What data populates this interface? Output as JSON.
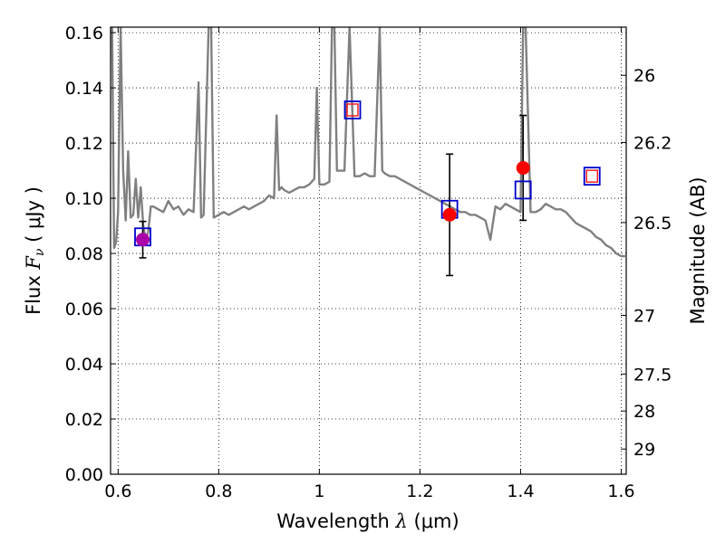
{
  "chart_data": {
    "type": "scatter",
    "xlabel": "Wavelength  λ (μm)",
    "ylabel": "Flux  Fν  ( μJy )",
    "ylabel_parts": {
      "prefix": "Flux ",
      "symbol": "F",
      "subscript": "ν",
      "unit": " ( μJy )"
    },
    "xlabel_parts": {
      "prefix": "Wavelength  ",
      "symbol": "λ",
      "unit": " (μm)"
    },
    "y2label": "Magnitude (AB)",
    "xlim": [
      0.585,
      1.61
    ],
    "ylim": [
      0.0,
      0.162
    ],
    "grid": true,
    "x_ticks": [
      {
        "value": 0.6,
        "label": "0.6"
      },
      {
        "value": 0.8,
        "label": "0.8"
      },
      {
        "value": 1.0,
        "label": "1"
      },
      {
        "value": 1.2,
        "label": "1.2"
      },
      {
        "value": 1.4,
        "label": "1.4"
      },
      {
        "value": 1.6,
        "label": "1.6"
      }
    ],
    "y_ticks": [
      {
        "value": 0.0,
        "label": "0.00"
      },
      {
        "value": 0.02,
        "label": "0.02"
      },
      {
        "value": 0.04,
        "label": "0.04"
      },
      {
        "value": 0.06,
        "label": "0.06"
      },
      {
        "value": 0.08,
        "label": "0.08"
      },
      {
        "value": 0.1,
        "label": "0.10"
      },
      {
        "value": 0.12,
        "label": "0.12"
      },
      {
        "value": 0.14,
        "label": "0.14"
      },
      {
        "value": 0.16,
        "label": "0.16"
      }
    ],
    "y2_ticks": [
      {
        "value": 26,
        "label": "26"
      },
      {
        "value": 26.2,
        "label": "26.2"
      },
      {
        "value": 26.5,
        "label": "26.5"
      },
      {
        "value": 27,
        "label": "27"
      },
      {
        "value": 27.5,
        "label": "27.5"
      },
      {
        "value": 28,
        "label": "28"
      },
      {
        "value": 29,
        "label": "29"
      }
    ],
    "colors": {
      "model": "#808080",
      "observed": "#ff0000",
      "model_bandpass": "#0000cc",
      "upper_limit_fill": "#ff0000",
      "overlap_point": "#aa00aa",
      "grid": "#000000"
    },
    "series": [
      {
        "type": "line",
        "x": [
          0.588,
          0.592,
          0.596,
          0.6,
          0.605,
          0.61,
          0.615,
          0.62,
          0.625,
          0.63,
          0.635,
          0.64,
          0.645,
          0.65,
          0.655,
          0.66,
          0.665,
          0.67,
          0.68,
          0.69,
          0.7,
          0.71,
          0.72,
          0.73,
          0.74,
          0.75,
          0.76,
          0.765,
          0.77,
          0.78,
          0.785,
          0.79,
          0.8,
          0.81,
          0.82,
          0.83,
          0.84,
          0.85,
          0.86,
          0.87,
          0.88,
          0.89,
          0.9,
          0.91,
          0.915,
          0.92,
          0.925,
          0.93,
          0.94,
          0.95,
          0.96,
          0.97,
          0.98,
          0.99,
          0.995,
          1.0,
          1.01,
          1.02,
          1.025,
          1.03,
          1.035,
          1.04,
          1.05,
          1.06,
          1.07,
          1.08,
          1.09,
          1.1,
          1.11,
          1.12,
          1.125,
          1.13,
          1.14,
          1.15,
          1.16,
          1.17,
          1.18,
          1.19,
          1.2,
          1.21,
          1.22,
          1.23,
          1.24,
          1.25,
          1.26,
          1.27,
          1.28,
          1.29,
          1.3,
          1.31,
          1.32,
          1.33,
          1.34,
          1.35,
          1.36,
          1.37,
          1.38,
          1.39,
          1.4,
          1.405,
          1.41,
          1.42,
          1.43,
          1.44,
          1.45,
          1.46,
          1.47,
          1.48,
          1.49,
          1.5,
          1.51,
          1.52,
          1.53,
          1.54,
          1.55,
          1.56,
          1.57,
          1.58,
          1.59,
          1.6,
          1.608
        ],
        "y": [
          0.162,
          0.082,
          0.084,
          0.095,
          0.162,
          0.11,
          0.092,
          0.117,
          0.093,
          0.094,
          0.107,
          0.093,
          0.104,
          0.09,
          0.085,
          0.088,
          0.097,
          0.097,
          0.096,
          0.095,
          0.099,
          0.096,
          0.097,
          0.094,
          0.096,
          0.095,
          0.142,
          0.093,
          0.094,
          0.162,
          0.162,
          0.093,
          0.094,
          0.095,
          0.094,
          0.095,
          0.096,
          0.097,
          0.096,
          0.097,
          0.098,
          0.099,
          0.101,
          0.1,
          0.13,
          0.103,
          0.104,
          0.103,
          0.102,
          0.103,
          0.104,
          0.104,
          0.105,
          0.107,
          0.14,
          0.105,
          0.105,
          0.106,
          0.162,
          0.162,
          0.11,
          0.11,
          0.11,
          0.162,
          0.108,
          0.108,
          0.109,
          0.108,
          0.108,
          0.162,
          0.11,
          0.109,
          0.108,
          0.108,
          0.107,
          0.106,
          0.105,
          0.104,
          0.103,
          0.102,
          0.101,
          0.1,
          0.099,
          0.098,
          0.097,
          0.096,
          0.095,
          0.095,
          0.094,
          0.094,
          0.093,
          0.092,
          0.085,
          0.097,
          0.096,
          0.098,
          0.097,
          0.096,
          0.095,
          0.162,
          0.162,
          0.095,
          0.095,
          0.096,
          0.098,
          0.097,
          0.096,
          0.096,
          0.095,
          0.093,
          0.091,
          0.09,
          0.089,
          0.088,
          0.086,
          0.085,
          0.083,
          0.082,
          0.08,
          0.079,
          0.079
        ]
      },
      {
        "type": "scatter",
        "marker": "circle",
        "x": [
          0.649,
          1.259,
          1.405
        ],
        "y": [
          0.085,
          0.094,
          0.111
        ],
        "yerr": [
          0.0066,
          0.022,
          0.019
        ]
      },
      {
        "type": "scatter",
        "marker": "square",
        "x": [
          0.649,
          1.259,
          1.405
        ],
        "y": [
          0.086,
          0.096,
          0.103
        ]
      },
      {
        "type": "scatter",
        "marker": "square-double",
        "x": [
          1.066,
          1.542
        ],
        "y": [
          0.132,
          0.108
        ]
      }
    ]
  }
}
